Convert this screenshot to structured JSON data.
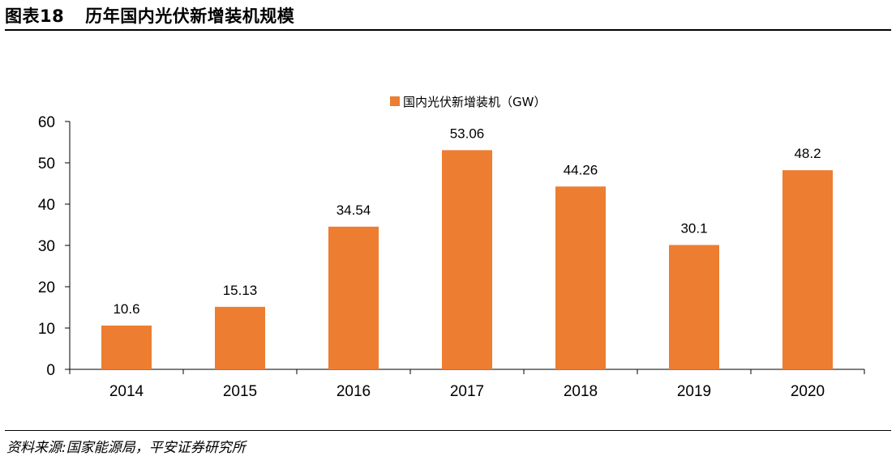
{
  "figure": {
    "number": "图表18",
    "title": "历年国内光伏新增装机规模",
    "source": "资料来源:国家能源局，平安证券研究所"
  },
  "chart_data": {
    "type": "bar",
    "title": "",
    "xlabel": "",
    "ylabel": "",
    "categories": [
      "2014",
      "2015",
      "2016",
      "2017",
      "2018",
      "2019",
      "2020"
    ],
    "series": [
      {
        "name": "国内光伏新增装机（GW）",
        "values": [
          10.6,
          15.13,
          34.54,
          53.06,
          44.26,
          30.1,
          48.2
        ],
        "data_labels": [
          "10.6",
          "15.13",
          "34.54",
          "53.06",
          "44.26",
          "30.1",
          "48.2"
        ],
        "color": "#ED7D31"
      }
    ],
    "ylim": [
      0,
      60
    ],
    "yticks": [
      "0",
      "10",
      "20",
      "30",
      "40",
      "50",
      "60"
    ],
    "grid": false,
    "legend_position": "top-center"
  }
}
